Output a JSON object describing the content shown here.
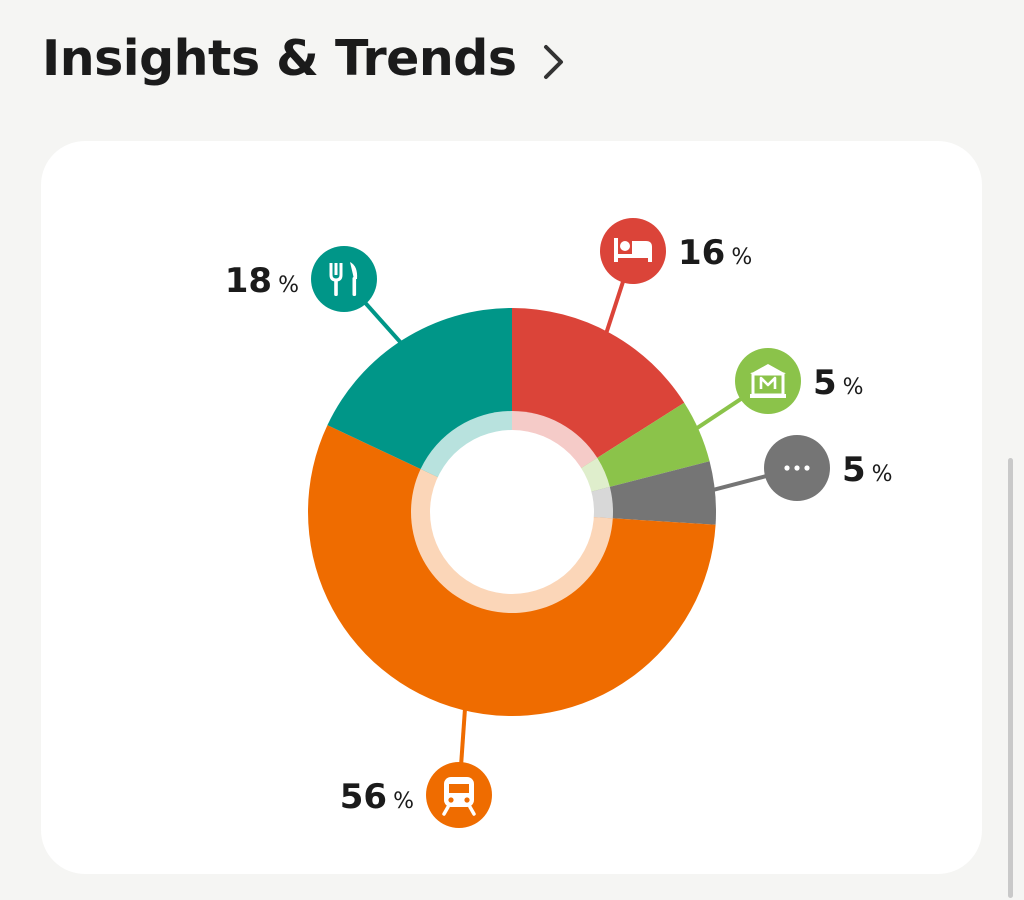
{
  "header": {
    "title": "Insights & Trends",
    "chevron_icon": "chevron-right-icon"
  },
  "chart_data": {
    "type": "pie",
    "donut": true,
    "title": "",
    "slices": [
      {
        "value": 16,
        "label": "16",
        "unit": "%",
        "color": "#db4439",
        "icon": "bed-icon"
      },
      {
        "value": 5,
        "label": "5",
        "unit": "%",
        "color": "#8bc34a",
        "icon": "museum-icon"
      },
      {
        "value": 5,
        "label": "5",
        "unit": "%",
        "color": "#757575",
        "icon": "more-icon"
      },
      {
        "value": 56,
        "label": "56",
        "unit": "%",
        "color": "#ef6c00",
        "icon": "train-icon"
      },
      {
        "value": 18,
        "label": "18",
        "unit": "%",
        "color": "#009688",
        "icon": "restaurant-icon"
      }
    ]
  }
}
